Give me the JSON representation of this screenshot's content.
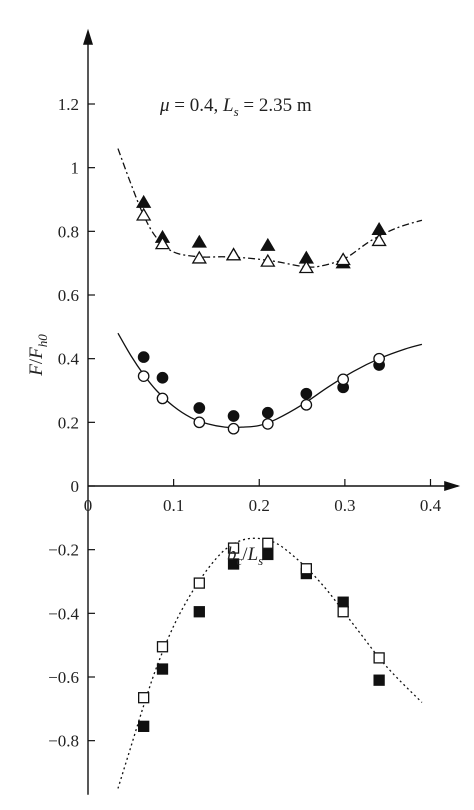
{
  "chart_data": {
    "type": "scatter",
    "annotation": "μ = 0.4, L_s = 2.35 m",
    "annotation_parts": {
      "mu_symbol": "μ",
      "mu_value": " = 0.4, ",
      "ls_symbol": "L",
      "ls_sub": "s",
      "ls_value": " = 2.35 m"
    },
    "xlabel": {
      "num": "b",
      "num_sub": "c",
      "slash": "/",
      "den": "L",
      "den_sub": "s"
    },
    "ylabel": {
      "num": "F",
      "slash": "/",
      "den": "F",
      "den_sub": "h0"
    },
    "xlim": [
      0,
      0.43
    ],
    "ylim": [
      -0.97,
      1.43
    ],
    "xticks": [
      0,
      0.1,
      0.2,
      0.3,
      0.4
    ],
    "xtick_labels": [
      "0",
      "0.1",
      "0.2",
      "0.3",
      "0.4"
    ],
    "yticks": [
      -0.8,
      -0.6,
      -0.4,
      -0.2,
      0,
      0.2,
      0.4,
      0.6,
      0.8,
      1,
      1.2
    ],
    "ytick_labels": [
      "−0.8",
      "−0.6",
      "−0.4",
      "−0.2",
      "0",
      "0.2",
      "0.4",
      "0.6",
      "0.8",
      "1",
      "1.2"
    ],
    "grid": false,
    "series": [
      {
        "marker": "filled-triangle",
        "color": "#111111",
        "x": [
          0.065,
          0.087,
          0.13,
          0.17,
          0.21,
          0.255,
          0.298,
          0.34
        ],
        "y": [
          0.89,
          0.78,
          0.765,
          0.725,
          0.755,
          0.715,
          0.7,
          0.805
        ]
      },
      {
        "marker": "open-triangle",
        "color": "#111111",
        "x": [
          0.065,
          0.087,
          0.13,
          0.17,
          0.21,
          0.255,
          0.298,
          0.34
        ],
        "y": [
          0.85,
          0.76,
          0.715,
          0.725,
          0.705,
          0.685,
          0.71,
          0.77
        ]
      },
      {
        "marker": "filled-circle",
        "color": "#111111",
        "x": [
          0.065,
          0.087,
          0.13,
          0.17,
          0.21,
          0.255,
          0.298,
          0.34
        ],
        "y": [
          0.405,
          0.34,
          0.245,
          0.22,
          0.23,
          0.29,
          0.31,
          0.38
        ]
      },
      {
        "marker": "open-circle",
        "color": "#111111",
        "x": [
          0.065,
          0.087,
          0.13,
          0.17,
          0.21,
          0.255,
          0.298,
          0.34
        ],
        "y": [
          0.345,
          0.275,
          0.2,
          0.18,
          0.195,
          0.255,
          0.335,
          0.4
        ]
      },
      {
        "marker": "filled-square",
        "color": "#111111",
        "x": [
          0.065,
          0.087,
          0.13,
          0.17,
          0.21,
          0.255,
          0.298,
          0.34
        ],
        "y": [
          -0.755,
          -0.575,
          -0.395,
          -0.245,
          -0.215,
          -0.275,
          -0.365,
          -0.61
        ]
      },
      {
        "marker": "open-square",
        "color": "#111111",
        "x": [
          0.065,
          0.087,
          0.13,
          0.17,
          0.21,
          0.255,
          0.298,
          0.34
        ],
        "y": [
          -0.665,
          -0.505,
          -0.305,
          -0.195,
          -0.18,
          -0.26,
          -0.395,
          -0.54
        ]
      }
    ],
    "fits": [
      {
        "style": "dash-dot",
        "x": [
          0.035,
          0.05,
          0.065,
          0.08,
          0.1,
          0.13,
          0.16,
          0.19,
          0.22,
          0.25,
          0.27,
          0.3,
          0.33,
          0.36,
          0.39
        ],
        "y": [
          1.06,
          0.95,
          0.85,
          0.78,
          0.735,
          0.72,
          0.72,
          0.715,
          0.705,
          0.69,
          0.69,
          0.715,
          0.77,
          0.81,
          0.835
        ]
      },
      {
        "style": "solid",
        "x": [
          0.035,
          0.05,
          0.065,
          0.08,
          0.1,
          0.12,
          0.14,
          0.16,
          0.18,
          0.2,
          0.22,
          0.25,
          0.28,
          0.31,
          0.34,
          0.37,
          0.39
        ],
        "y": [
          0.48,
          0.41,
          0.35,
          0.3,
          0.25,
          0.215,
          0.195,
          0.185,
          0.185,
          0.19,
          0.21,
          0.255,
          0.31,
          0.36,
          0.4,
          0.43,
          0.445
        ]
      },
      {
        "style": "dotted",
        "x": [
          0.035,
          0.05,
          0.065,
          0.08,
          0.1,
          0.12,
          0.14,
          0.16,
          0.18,
          0.2,
          0.22,
          0.24,
          0.26,
          0.28,
          0.3,
          0.32,
          0.34,
          0.36,
          0.39
        ],
        "y": [
          -0.95,
          -0.82,
          -0.69,
          -0.57,
          -0.44,
          -0.34,
          -0.26,
          -0.2,
          -0.17,
          -0.165,
          -0.18,
          -0.22,
          -0.27,
          -0.33,
          -0.4,
          -0.47,
          -0.54,
          -0.6,
          -0.68
        ]
      }
    ]
  }
}
